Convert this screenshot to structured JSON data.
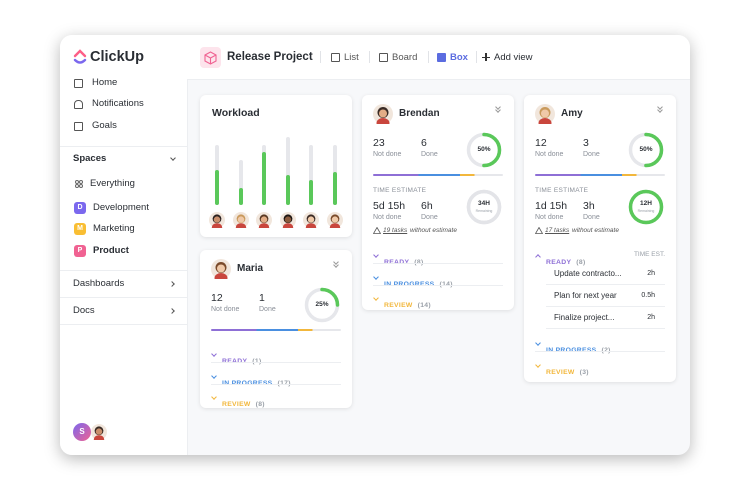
{
  "sidebar": {
    "logo": "ClickUp",
    "nav": [
      "Home",
      "Notifications",
      "Goals"
    ],
    "spaces_title": "Spaces",
    "spaces": [
      {
        "name": "Everything"
      },
      {
        "badge": "D",
        "name": "Development",
        "color": "#7b68ee"
      },
      {
        "badge": "M",
        "name": "Marketing",
        "color": "#f9be33"
      },
      {
        "badge": "P",
        "name": "Product",
        "color": "#f06292"
      }
    ],
    "sections": [
      "Dashboards",
      "Docs"
    ],
    "user_badge": "S"
  },
  "header": {
    "project": "Release Project",
    "views": [
      "List",
      "Board",
      "Box"
    ],
    "add_view": "Add view"
  },
  "workload": {
    "title": "Workload",
    "bars": [
      {
        "total": 60,
        "done": 35
      },
      {
        "total": 45,
        "done": 17
      },
      {
        "total": 60,
        "done": 53
      },
      {
        "total": 68,
        "done": 30
      },
      {
        "total": 60,
        "done": 25
      },
      {
        "total": 60,
        "done": 33
      }
    ]
  },
  "cards": [
    {
      "name": "Brendan",
      "stats": [
        {
          "value": "23",
          "label": "Not done"
        },
        {
          "value": "6",
          "label": "Done"
        }
      ],
      "progress": {
        "value": 50,
        "label": "50%"
      },
      "time_estimate": {
        "title": "TIME ESTIMATE",
        "stats": [
          {
            "value": "5d 15h",
            "label": "Not done"
          },
          {
            "value": "6h",
            "label": "Done"
          }
        ],
        "ring": "34H",
        "ring_sub": "Remaining",
        "ring_color": "#e3e4e8",
        "warning_link": "19 tasks",
        "warning_text": "without estimate"
      },
      "groups": [
        {
          "name": "READY",
          "count": "(8)",
          "color": "#8e6fd6"
        },
        {
          "name": "IN PROGRESS",
          "count": "(14)",
          "color": "#4a8fe0"
        },
        {
          "name": "REVIEW",
          "count": "(14)",
          "color": "#f2b73c"
        }
      ]
    },
    {
      "name": "Maria",
      "stats": [
        {
          "value": "12",
          "label": "Not done"
        },
        {
          "value": "1",
          "label": "Done"
        }
      ],
      "progress": {
        "value": 25,
        "label": "25%"
      },
      "groups": [
        {
          "name": "READY",
          "count": "(1)",
          "color": "#8e6fd6"
        },
        {
          "name": "IN PROGRESS",
          "count": "(17)",
          "color": "#4a8fe0"
        },
        {
          "name": "REVIEW",
          "count": "(8)",
          "color": "#f2b73c"
        }
      ]
    },
    {
      "name": "Amy",
      "stats": [
        {
          "value": "12",
          "label": "Not done"
        },
        {
          "value": "3",
          "label": "Done"
        }
      ],
      "progress": {
        "value": 50,
        "label": "50%"
      },
      "time_estimate": {
        "title": "TIME ESTIMATE",
        "stats": [
          {
            "value": "1d 15h",
            "label": "Not done"
          },
          {
            "value": "3h",
            "label": "Done"
          }
        ],
        "ring": "12H",
        "ring_sub": "Remaining",
        "ring_color": "#5ac85a",
        "warning_link": "17 tasks",
        "warning_text": "without estimate"
      },
      "groups": [
        {
          "name": "READY",
          "count": "(8)",
          "color": "#8e6fd6",
          "column": "TIME EST.",
          "tasks": [
            {
              "name": "Update contracto...",
              "estimate": "2h"
            },
            {
              "name": "Plan for next year",
              "estimate": "0.5h"
            },
            {
              "name": "Finalize project...",
              "estimate": "2h"
            }
          ]
        },
        {
          "name": "IN PROGRESS",
          "count": "(2)",
          "color": "#4a8fe0"
        },
        {
          "name": "REVIEW",
          "count": "(3)",
          "color": "#f2b73c"
        }
      ]
    }
  ]
}
